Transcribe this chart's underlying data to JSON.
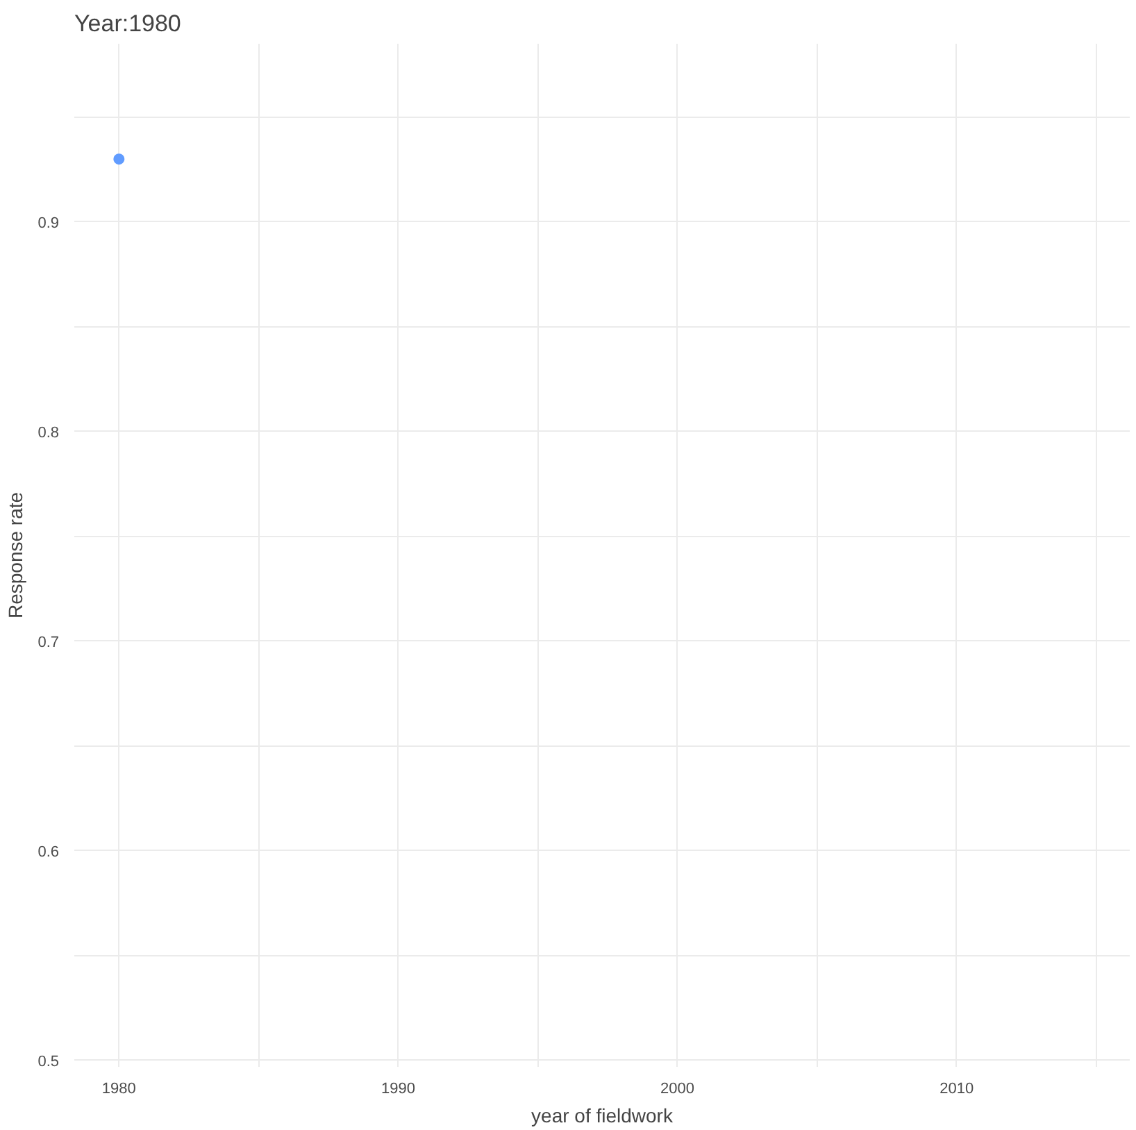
{
  "chart_data": {
    "type": "scatter",
    "title": "Year:1980",
    "xlabel": "year of fieldwork",
    "ylabel": "Response rate",
    "x": [
      1980
    ],
    "series": [
      {
        "color": "#619cff",
        "values": [
          0.93
        ]
      }
    ],
    "xlim": [
      1978.4,
      2016.2
    ],
    "ylim": [
      0.497,
      0.985
    ],
    "xticks": [
      1980,
      {
        "value": 1985,
        "label": null
      },
      1990,
      {
        "value": 1995,
        "label": null
      },
      2000,
      {
        "value": 2005,
        "label": null
      },
      2010,
      {
        "value": 2015,
        "label": null
      }
    ],
    "yticks": [
      0.5,
      {
        "value": 0.55,
        "label": null
      },
      0.6,
      {
        "value": 0.65,
        "label": null
      },
      0.7,
      {
        "value": 0.75,
        "label": null
      },
      0.8,
      {
        "value": 0.85,
        "label": null
      },
      0.9,
      {
        "value": 0.95,
        "label": null
      }
    ],
    "grid": true,
    "marker": "circle"
  }
}
